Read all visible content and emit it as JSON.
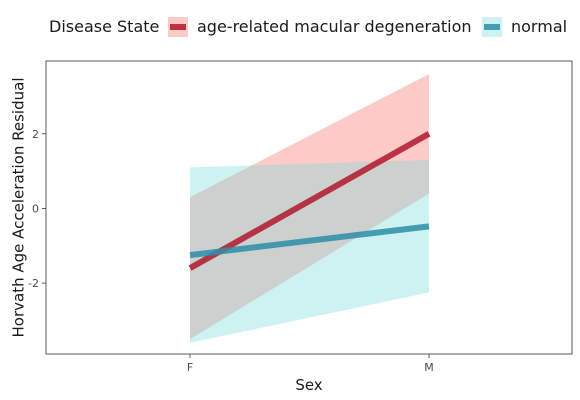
{
  "chart_data": {
    "type": "line",
    "xlabel": "Sex",
    "ylabel": "Horvath Age Acceleration Residual",
    "categories": [
      "F",
      "M"
    ],
    "yticks": [
      -2,
      0,
      2
    ],
    "ylim": [
      -3.9,
      3.95
    ],
    "legend": {
      "title": "Disease State",
      "placement": "top"
    },
    "grid": false,
    "series": [
      {
        "name": "age-related macular degeneration",
        "color": "#B2182B",
        "fill_color": "#F8766D",
        "values": [
          -1.6,
          2.0
        ],
        "ci_lower": [
          -3.5,
          0.4
        ],
        "ci_upper": [
          0.3,
          3.6
        ]
      },
      {
        "name": "normal",
        "color": "#2C8EA8",
        "fill_color": "#7FD9DD",
        "values": [
          -1.25,
          -0.48
        ],
        "ci_lower": [
          -3.6,
          -2.25
        ],
        "ci_upper": [
          1.1,
          1.3
        ]
      }
    ]
  }
}
